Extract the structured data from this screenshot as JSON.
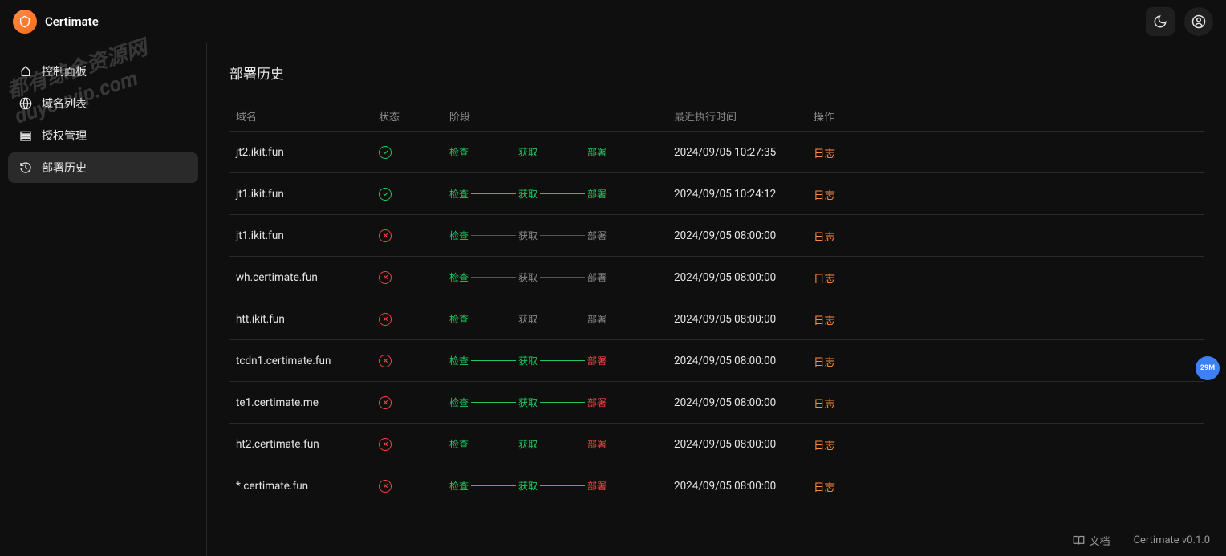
{
  "brand": {
    "name": "Certimate"
  },
  "watermark": {
    "line1": "都有综合资源网",
    "line2": "duyouvip.com"
  },
  "sidebar": {
    "items": [
      {
        "label": "控制面板",
        "icon": "dashboard"
      },
      {
        "label": "域名列表",
        "icon": "globe"
      },
      {
        "label": "授权管理",
        "icon": "rows"
      },
      {
        "label": "部署历史",
        "icon": "history",
        "active": true
      }
    ]
  },
  "page": {
    "title": "部署历史"
  },
  "table": {
    "headers": {
      "domain": "域名",
      "status": "状态",
      "stage": "阶段",
      "time": "最近执行时间",
      "action": "操作"
    },
    "stage_labels": {
      "check": "检查",
      "acquire": "获取",
      "deploy": "部署"
    },
    "log_label": "日志",
    "rows": [
      {
        "domain": "jt2.ikit.fun",
        "status": "ok",
        "stage": {
          "check": "green",
          "bar1": "green",
          "acquire": "green",
          "bar2": "green",
          "deploy": "green"
        },
        "time": "2024/09/05 10:27:35"
      },
      {
        "domain": "jt1.ikit.fun",
        "status": "ok",
        "stage": {
          "check": "green",
          "bar1": "green",
          "acquire": "green",
          "bar2": "green",
          "deploy": "green"
        },
        "time": "2024/09/05 10:24:12"
      },
      {
        "domain": "jt1.ikit.fun",
        "status": "fail",
        "stage": {
          "check": "green",
          "bar1": "gray",
          "acquire": "gray",
          "bar2": "gray",
          "deploy": "gray"
        },
        "time": "2024/09/05 08:00:00"
      },
      {
        "domain": "wh.certimate.fun",
        "status": "fail",
        "stage": {
          "check": "green",
          "bar1": "gray",
          "acquire": "gray",
          "bar2": "gray",
          "deploy": "gray"
        },
        "time": "2024/09/05 08:00:00"
      },
      {
        "domain": "htt.ikit.fun",
        "status": "fail",
        "stage": {
          "check": "green",
          "bar1": "gray",
          "acquire": "gray",
          "bar2": "gray",
          "deploy": "gray"
        },
        "time": "2024/09/05 08:00:00"
      },
      {
        "domain": "tcdn1.certimate.fun",
        "status": "fail",
        "stage": {
          "check": "green",
          "bar1": "green",
          "acquire": "green",
          "bar2": "green",
          "deploy": "red"
        },
        "time": "2024/09/05 08:00:00"
      },
      {
        "domain": "te1.certimate.me",
        "status": "fail",
        "stage": {
          "check": "green",
          "bar1": "green",
          "acquire": "green",
          "bar2": "green",
          "deploy": "red"
        },
        "time": "2024/09/05 08:00:00"
      },
      {
        "domain": "ht2.certimate.fun",
        "status": "fail",
        "stage": {
          "check": "green",
          "bar1": "green",
          "acquire": "green",
          "bar2": "green",
          "deploy": "red"
        },
        "time": "2024/09/05 08:00:00"
      },
      {
        "domain": "*.certimate.fun",
        "status": "fail",
        "stage": {
          "check": "green",
          "bar1": "green",
          "acquire": "green",
          "bar2": "green",
          "deploy": "red"
        },
        "time": "2024/09/05 08:00:00"
      }
    ]
  },
  "footer": {
    "docs": "文档",
    "version": "Certimate v0.1.0"
  },
  "float_badge": "29M",
  "colors": {
    "green": "#22c55e",
    "red": "#ef4444",
    "orange": "#ff8c42",
    "gray": "#8a8a8a"
  }
}
